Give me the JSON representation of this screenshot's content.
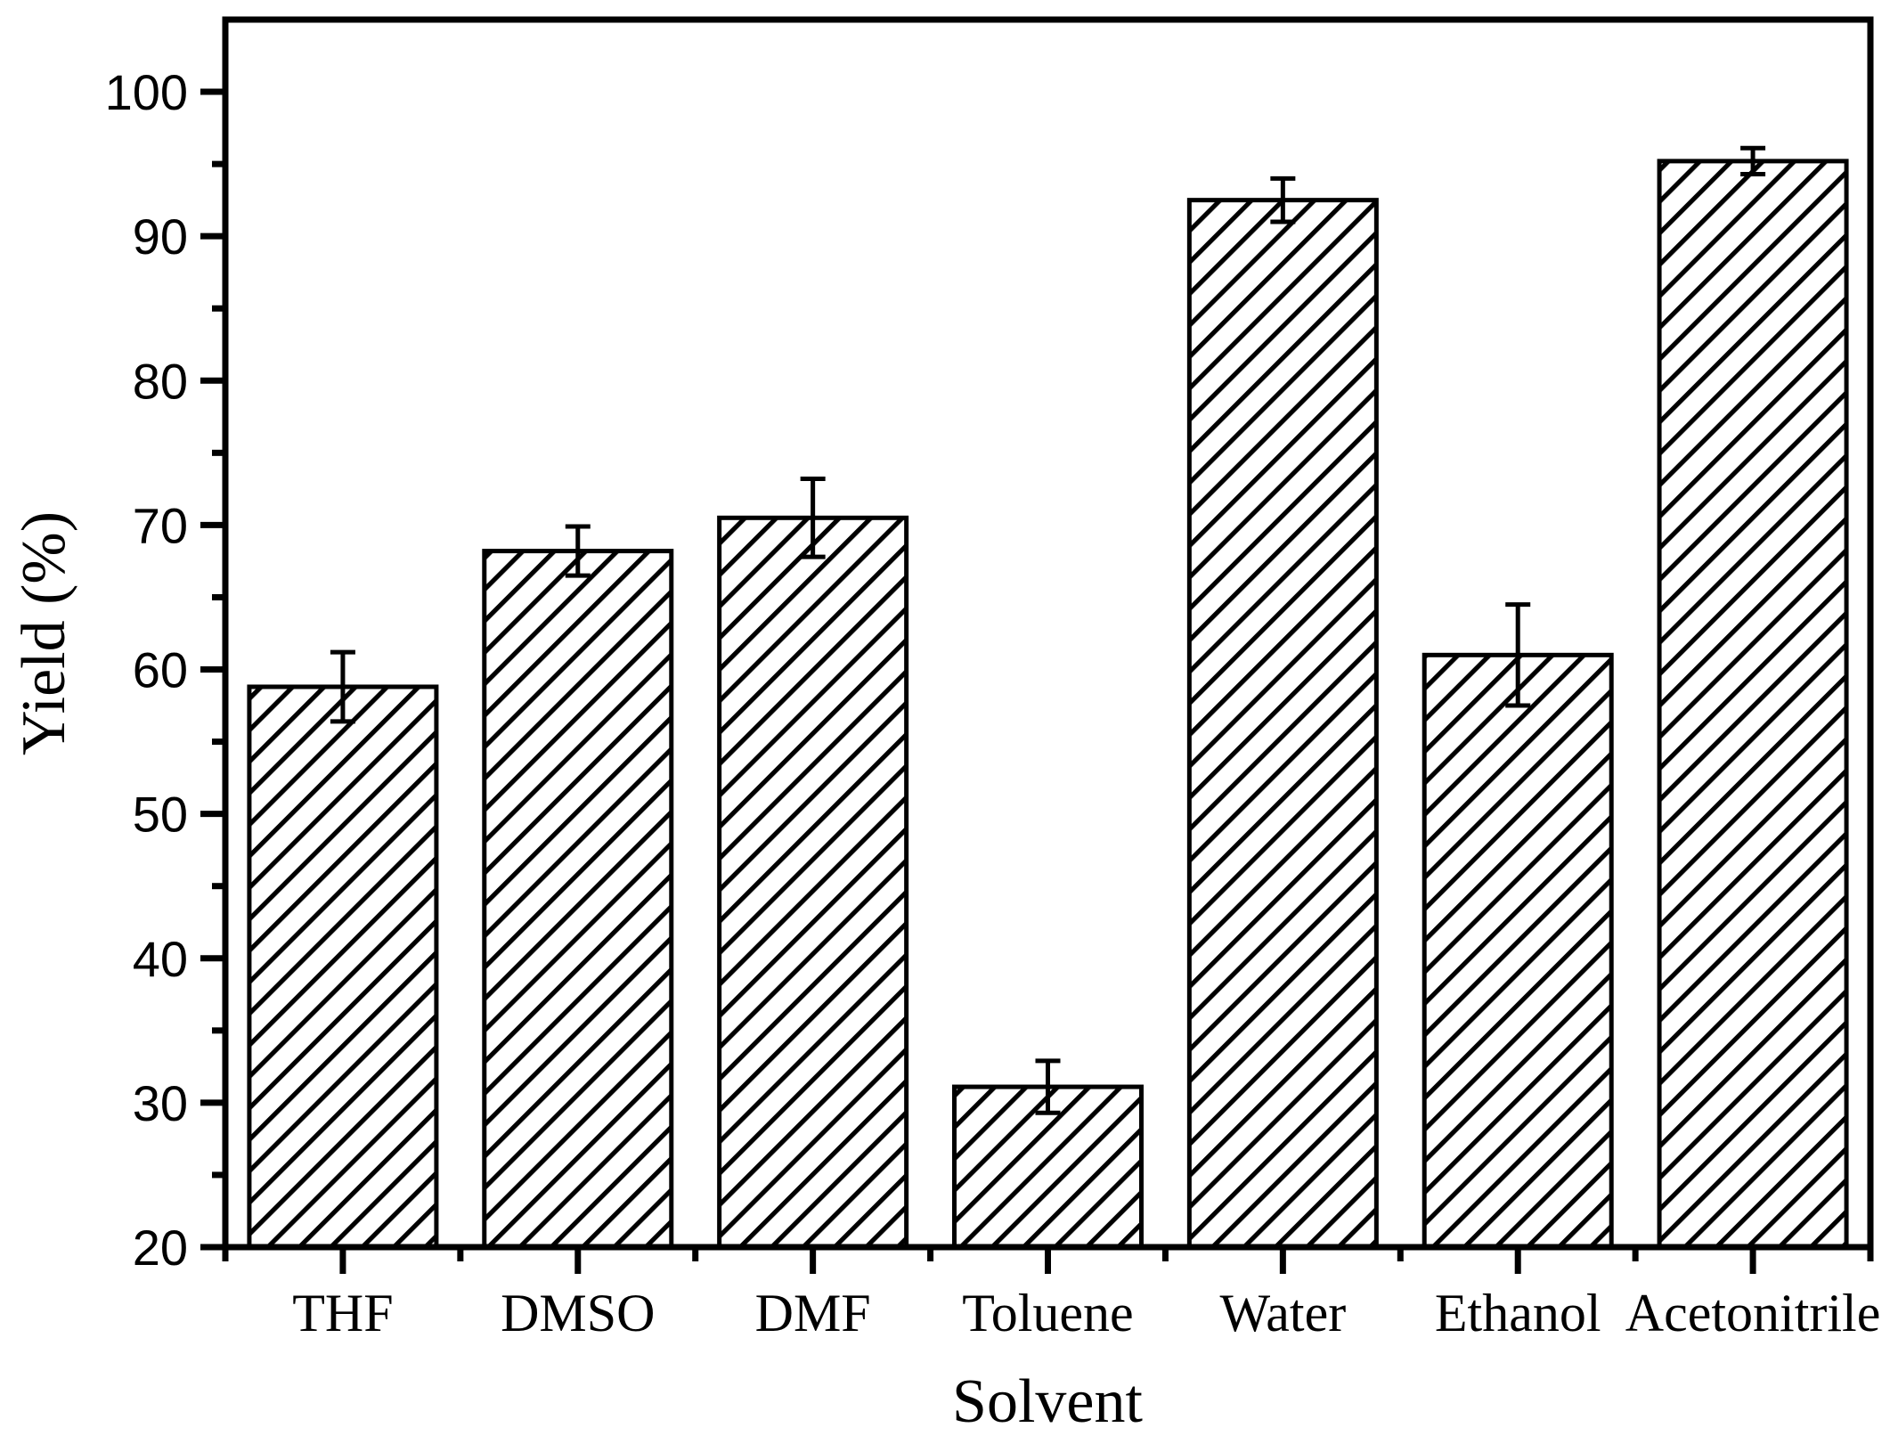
{
  "chart_data": {
    "type": "bar",
    "title": "",
    "categories": [
      "THF",
      "DMSO",
      "DMF",
      "Toluene",
      "Water",
      "Ethanol",
      "Acetonitrile"
    ],
    "values": [
      58.8,
      68.2,
      70.5,
      31.1,
      92.5,
      61.0,
      95.2
    ],
    "error_bars": [
      2.4,
      1.7,
      2.7,
      1.8,
      1.5,
      3.5,
      0.9
    ],
    "xlabel": "Solvent",
    "ylabel": "Yield (%)",
    "ylim": [
      20,
      105
    ],
    "y_major_ticks": [
      20,
      30,
      40,
      50,
      60,
      70,
      80,
      90,
      100
    ],
    "y_minor_step": 5,
    "grid": false,
    "legend": null,
    "bar_style": "diagonal-hatch",
    "colors": {
      "foreground": "#000000",
      "background": "#ffffff"
    }
  }
}
